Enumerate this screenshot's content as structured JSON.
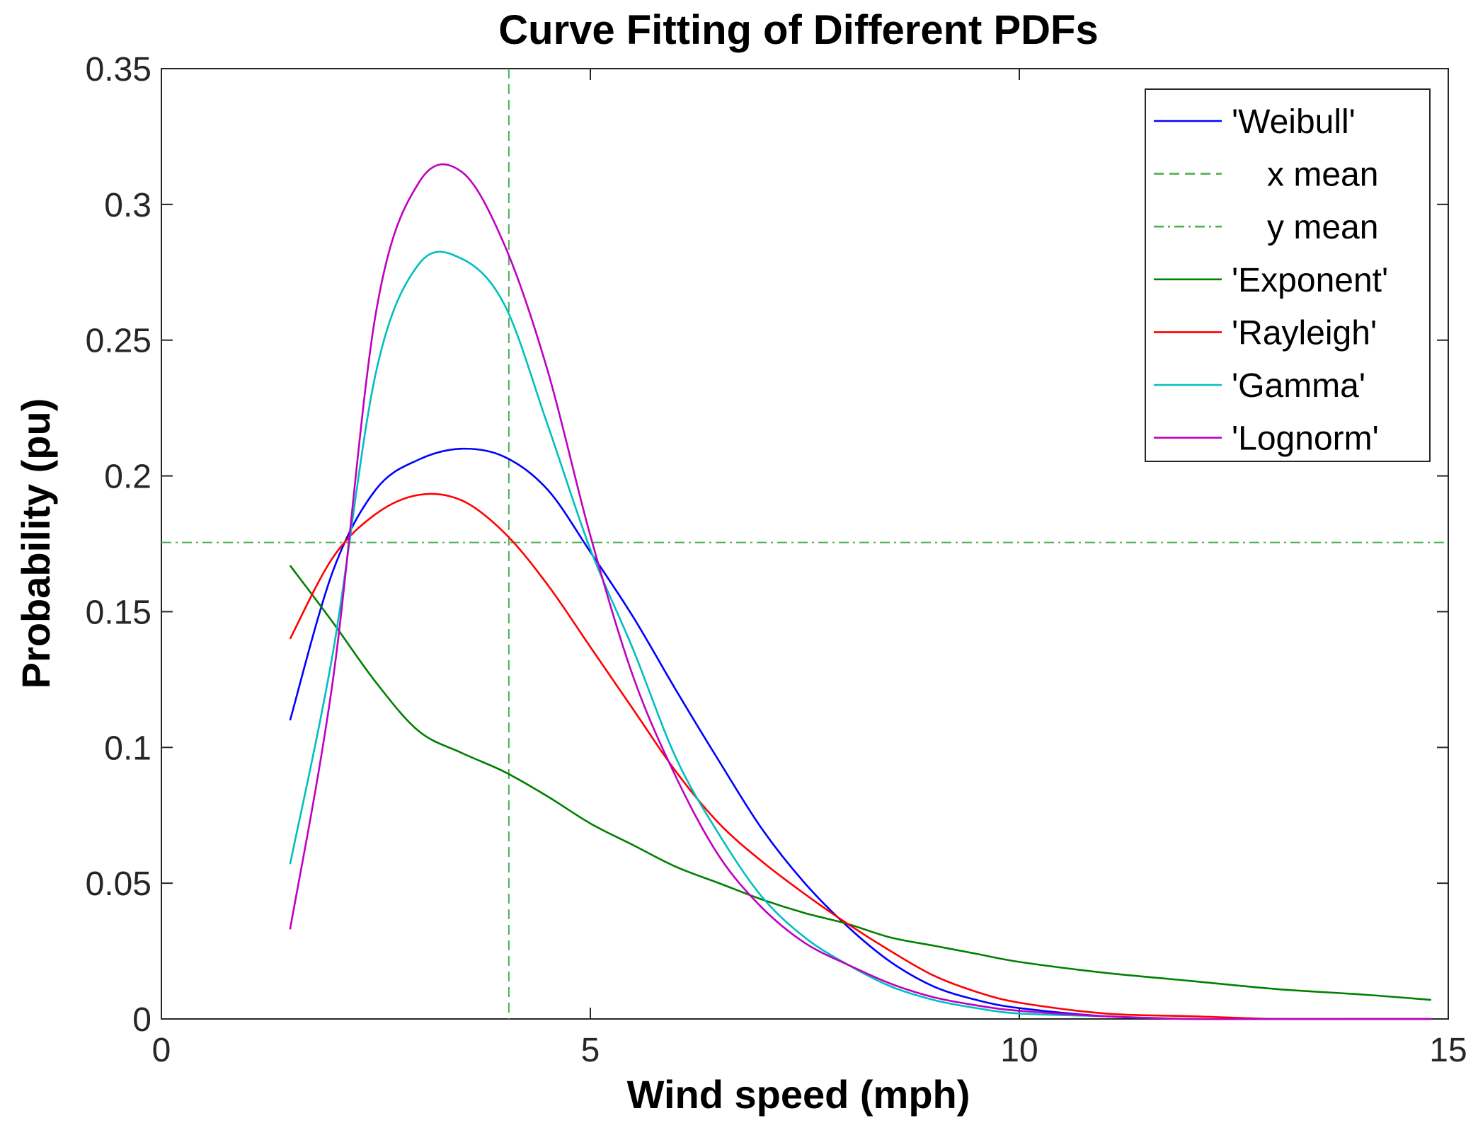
{
  "chart_data": {
    "type": "line",
    "title": "Curve Fitting of Different PDFs",
    "xlabel": "Wind speed (mph)",
    "ylabel": "Probability (pu)",
    "xlim": [
      0,
      15
    ],
    "ylim": [
      0,
      0.35
    ],
    "xticks": [
      0,
      5,
      10,
      15
    ],
    "xtick_labels": [
      "0",
      "5",
      "10",
      "15"
    ],
    "yticks": [
      0,
      0.05,
      0.1,
      0.15,
      0.2,
      0.25,
      0.3,
      0.35
    ],
    "ytick_labels": [
      "0",
      "0.05",
      "0.1",
      "0.15",
      "0.2",
      "0.25",
      "0.3",
      "0.35"
    ],
    "legend_position": "top-right",
    "reference_lines": {
      "x_mean": 4.05,
      "y_mean": 0.1755
    },
    "x": [
      1.5,
      2.0,
      2.5,
      3.0,
      3.5,
      4.0,
      4.5,
      5.0,
      5.5,
      6.0,
      6.5,
      7.0,
      7.5,
      8.0,
      8.5,
      9.0,
      9.5,
      10.0,
      11.0,
      12.0,
      13.0,
      14.0,
      14.8
    ],
    "series": [
      {
        "name": "'Weibull'",
        "color": "#0000ff",
        "values": [
          0.11,
          0.165,
          0.195,
          0.206,
          0.21,
          0.207,
          0.195,
          0.172,
          0.148,
          0.121,
          0.095,
          0.07,
          0.05,
          0.034,
          0.021,
          0.012,
          0.007,
          0.004,
          0.001,
          0.0,
          0.0,
          0.0,
          0.0
        ]
      },
      {
        "name": "'Exponent'",
        "color": "#008000",
        "values": [
          0.167,
          0.146,
          0.124,
          0.106,
          0.098,
          0.091,
          0.082,
          0.072,
          0.064,
          0.056,
          0.05,
          0.044,
          0.039,
          0.035,
          0.03,
          0.027,
          0.024,
          0.021,
          0.017,
          0.014,
          0.011,
          0.009,
          0.007
        ]
      },
      {
        "name": "'Rayleigh'",
        "color": "#ff0000",
        "values": [
          0.14,
          0.17,
          0.186,
          0.193,
          0.191,
          0.179,
          0.16,
          0.137,
          0.114,
          0.091,
          0.072,
          0.058,
          0.046,
          0.035,
          0.025,
          0.016,
          0.01,
          0.006,
          0.002,
          0.001,
          0.0,
          0.0,
          0.0
        ]
      },
      {
        "name": "'Gamma'",
        "color": "#00bfbf",
        "values": [
          0.057,
          0.135,
          0.238,
          0.278,
          0.28,
          0.263,
          0.219,
          0.173,
          0.136,
          0.096,
          0.068,
          0.045,
          0.03,
          0.02,
          0.012,
          0.007,
          0.004,
          0.002,
          0.001,
          0.0,
          0.0,
          0.0,
          0.0
        ]
      },
      {
        "name": "'Lognorm'",
        "color": "#bf00bf",
        "values": [
          0.033,
          0.125,
          0.26,
          0.308,
          0.312,
          0.285,
          0.239,
          0.178,
          0.126,
          0.089,
          0.06,
          0.041,
          0.028,
          0.02,
          0.013,
          0.008,
          0.005,
          0.003,
          0.001,
          0.0,
          0.0,
          0.0,
          0.0
        ]
      }
    ],
    "legend_entries": [
      {
        "label": "'Weibull'",
        "color": "#0000ff",
        "style": "solid"
      },
      {
        "label": "x mean",
        "color": "#4caf50",
        "style": "dashed"
      },
      {
        "label": "y mean",
        "color": "#4caf50",
        "style": "dashdot"
      },
      {
        "label": "'Exponent'",
        "color": "#008000",
        "style": "solid"
      },
      {
        "label": "'Rayleigh'",
        "color": "#ff0000",
        "style": "solid"
      },
      {
        "label": "'Gamma'",
        "color": "#00bfbf",
        "style": "solid"
      },
      {
        "label": "'Lognorm'",
        "color": "#bf00bf",
        "style": "solid"
      }
    ]
  }
}
